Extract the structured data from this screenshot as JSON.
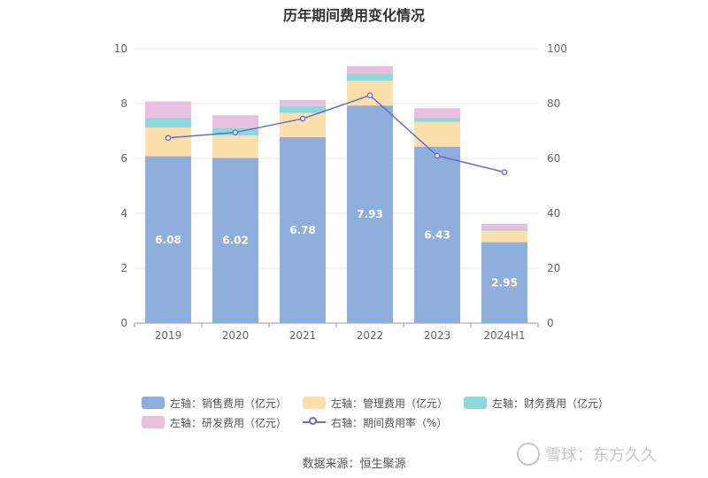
{
  "title": "历年期间费用变化情况",
  "source": "数据来源：恒生聚源",
  "watermark": "雪球：东方久久",
  "colors": {
    "sales": "#8eaedb",
    "admin": "#fddfab",
    "finance": "#8dd8d8",
    "rd": "#e9bfe0",
    "rate_line": "#6a6bd0",
    "grid": "#e6e6e6",
    "axis": "#999999"
  },
  "chart_data": {
    "type": "bar",
    "stacked": true,
    "categories": [
      "2019",
      "2020",
      "2021",
      "2022",
      "2023",
      "2024H1"
    ],
    "left_axis": {
      "ylim": [
        0,
        10
      ],
      "ticks": [
        0,
        2,
        4,
        6,
        8,
        10
      ]
    },
    "right_axis": {
      "ylim": [
        0,
        100
      ],
      "ticks": [
        0,
        20,
        40,
        60,
        80,
        100
      ]
    },
    "series": [
      {
        "key": "sales",
        "name": "左轴：销售费用（亿元）",
        "axis": "left",
        "values": [
          6.08,
          6.02,
          6.78,
          7.93,
          6.43,
          2.95
        ],
        "labels": [
          "6.08",
          "6.02",
          "6.78",
          "7.93",
          "6.43",
          "2.95"
        ]
      },
      {
        "key": "admin",
        "name": "左轴：管理费用（亿元）",
        "axis": "left",
        "values": [
          1.05,
          0.82,
          0.88,
          0.9,
          0.9,
          0.42
        ]
      },
      {
        "key": "finance",
        "name": "左轴：财务费用（亿元）",
        "axis": "left",
        "values": [
          0.35,
          0.28,
          0.25,
          0.25,
          0.15,
          0.05
        ]
      },
      {
        "key": "rd",
        "name": "左轴：研发费用（亿元）",
        "axis": "left",
        "values": [
          0.6,
          0.45,
          0.22,
          0.28,
          0.35,
          0.2
        ]
      },
      {
        "key": "rate",
        "name": "右轴：期间费用率（%）",
        "axis": "right",
        "type": "line",
        "values": [
          67.5,
          69.5,
          74.5,
          83,
          61,
          55
        ]
      }
    ],
    "legend_position": "bottom",
    "grid": true
  }
}
